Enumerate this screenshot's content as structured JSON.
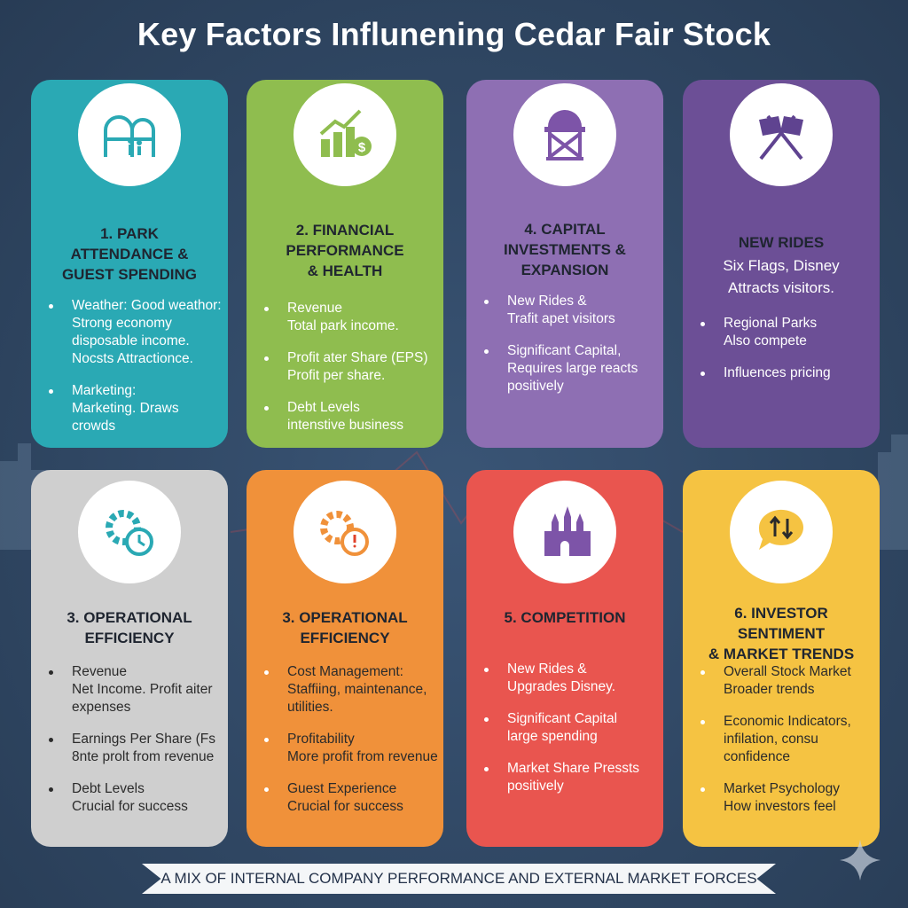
{
  "title": "Key Factors Influnening Cedar Fair Stock",
  "footer": "A MIX OF INTERNAL COMPANY PERFORMANCE AND EXTERNAL MARKET FORCES",
  "colors": {
    "background": "#2f4662",
    "teal": "#2aa9b4",
    "green": "#8fbd4f",
    "purple": "#8e6fb3",
    "dark_purple": "#6c4f96",
    "gray": "#cfcfcf",
    "orange": "#f0913a",
    "red": "#e9554f",
    "yellow": "#f5c342"
  },
  "cards": [
    {
      "icon": "roller-coaster-icon",
      "color": "#2aa9b4",
      "title": [
        "1. PARK",
        "ATTENDANCE &",
        "GUEST SPENDING"
      ],
      "subtitle": [],
      "bullets": [
        [
          "Weather: Good weathor:",
          "Strong economy",
          "disposable income.",
          "Nocsts Attractionce."
        ],
        [
          "Marketing:",
          "Marketing. Draws crowds"
        ]
      ]
    },
    {
      "icon": "growth-chart-dollar-icon",
      "color": "#8fbd4f",
      "title": [
        "2. FINANCIAL",
        "PERFORMANCE",
        "& HEALTH"
      ],
      "subtitle": [],
      "bullets": [
        [
          "Revenue",
          "Total park income."
        ],
        [
          "Profit ater Share (EPS)",
          "Profit per share."
        ],
        [
          "Debt Levels",
          "intenstive business"
        ]
      ]
    },
    {
      "icon": "construction-tower-icon",
      "color": "#8e6fb3",
      "title": [
        "4. CAPITAL",
        "INVESTMENTS &",
        "EXPANSION"
      ],
      "subtitle": [],
      "bullets": [
        [
          "New Rides &",
          "Trafit apet visitors"
        ],
        [
          "Significant Capital,",
          "Requires large reacts",
          "positively"
        ]
      ]
    },
    {
      "icon": "crossed-flags-icon",
      "color": "#6c4f96",
      "title": [
        "NEW RIDES"
      ],
      "subtitle": [
        "Six Flags, Disney",
        "Attracts visitors."
      ],
      "bullets": [
        [
          "Regional Parks",
          "Also compete"
        ],
        [
          "Influences pricing"
        ]
      ]
    },
    {
      "icon": "gear-clock-icon",
      "color": "#cfcfcf",
      "title": [
        "3. OPERATIONAL",
        "EFFICIENCY"
      ],
      "subtitle": [],
      "bullets": [
        [
          "Revenue",
          "Net Income. Profit aiter",
          "expenses"
        ],
        [
          "Earnings Per Share (Fs",
          "8nte prolt from revenue"
        ],
        [
          "Debt Levels",
          "Crucial for success"
        ]
      ]
    },
    {
      "icon": "gear-stopwatch-icon",
      "color": "#f0913a",
      "title": [
        "3. OPERATIONAL",
        "EFFICIENCY"
      ],
      "subtitle": [],
      "bullets": [
        [
          "Cost Management:",
          "Staffiing, maintenance,",
          "utilities."
        ],
        [
          "Profitability",
          "More profit from revenue"
        ],
        [
          "Guest Experience",
          "Crucial for success"
        ]
      ]
    },
    {
      "icon": "castle-icon",
      "color": "#e9554f",
      "title": [
        "5. COMPETITION"
      ],
      "subtitle": [],
      "bullets": [
        [
          "New Rides &",
          "Upgrades Disney."
        ],
        [
          "Significant Capital",
          "large spending"
        ],
        [
          "Market Share Pressts",
          "positively"
        ]
      ]
    },
    {
      "icon": "speech-bubble-arrows-icon",
      "color": "#f5c342",
      "title": [
        "6. INVESTOR SENTIMENT",
        "& MARKET TRENDS"
      ],
      "subtitle": [],
      "bullets": [
        [
          "Overall Stock Market",
          "Broader trends"
        ],
        [
          "Economic Indicators,",
          "infilation, consu confidence"
        ],
        [
          "Market Psychology",
          "How investors feel"
        ]
      ]
    }
  ]
}
